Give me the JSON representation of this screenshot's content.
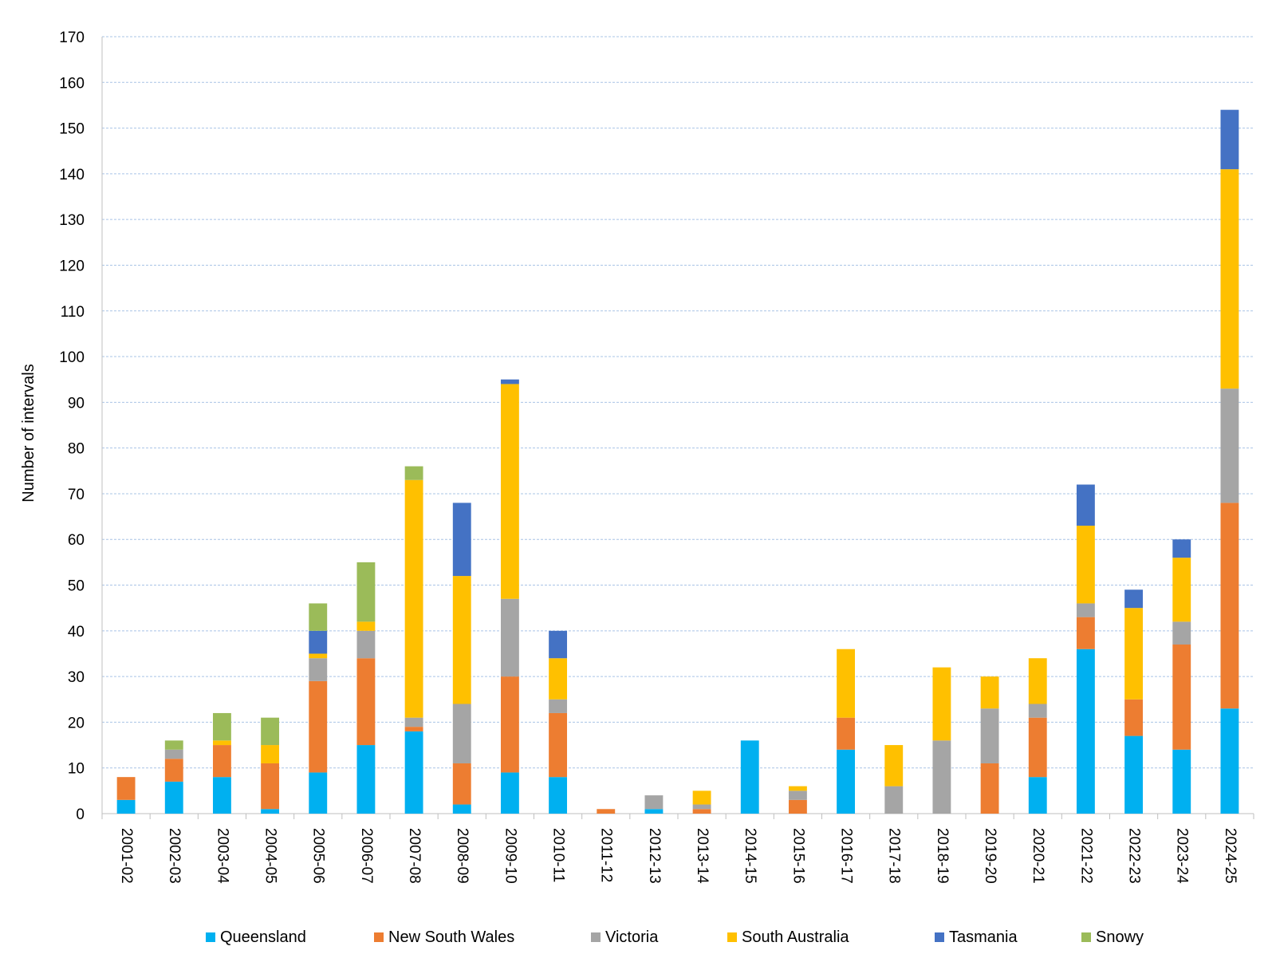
{
  "chart_data": {
    "type": "bar",
    "stacked": true,
    "title": "",
    "xlabel": "",
    "ylabel": "Number of intervals",
    "ylim": [
      0,
      170
    ],
    "yticks": [
      0,
      10,
      20,
      30,
      40,
      50,
      60,
      70,
      80,
      90,
      100,
      110,
      120,
      130,
      140,
      150,
      160,
      170
    ],
    "grid": "horizontal dashed",
    "legend_position": "bottom",
    "categories": [
      "2001-02",
      "2002-03",
      "2003-04",
      "2004-05",
      "2005-06",
      "2006-07",
      "2007-08",
      "2008-09",
      "2009-10",
      "2010-11",
      "2011-12",
      "2012-13",
      "2013-14",
      "2014-15",
      "2015-16",
      "2016-17",
      "2017-18",
      "2018-19",
      "2019-20",
      "2020-21",
      "2021-22",
      "2022-23",
      "2023-24",
      "2024-25"
    ],
    "series": [
      {
        "name": "Queensland",
        "color": "#00B0F0",
        "values": [
          3,
          7,
          8,
          1,
          9,
          15,
          18,
          2,
          9,
          8,
          0,
          1,
          0,
          16,
          0,
          14,
          0,
          0,
          0,
          8,
          36,
          17,
          14,
          23
        ]
      },
      {
        "name": "New South Wales",
        "color": "#ED7D31",
        "values": [
          5,
          5,
          7,
          10,
          20,
          19,
          1,
          9,
          21,
          14,
          1,
          0,
          1,
          0,
          3,
          7,
          0,
          0,
          11,
          13,
          7,
          8,
          23,
          45
        ]
      },
      {
        "name": "Victoria",
        "color": "#A5A5A5",
        "values": [
          0,
          2,
          0,
          0,
          5,
          6,
          2,
          13,
          17,
          3,
          0,
          3,
          1,
          0,
          2,
          0,
          6,
          16,
          12,
          3,
          3,
          0,
          5,
          25
        ]
      },
      {
        "name": "South Australia",
        "color": "#FFC000",
        "values": [
          0,
          0,
          1,
          4,
          1,
          2,
          52,
          28,
          47,
          9,
          0,
          0,
          3,
          0,
          1,
          15,
          9,
          16,
          7,
          10,
          17,
          20,
          14,
          48
        ]
      },
      {
        "name": "Tasmania",
        "color": "#4472C4",
        "values": [
          0,
          0,
          0,
          0,
          5,
          0,
          0,
          16,
          1,
          6,
          0,
          0,
          0,
          0,
          0,
          0,
          0,
          0,
          0,
          0,
          9,
          4,
          4,
          13
        ]
      },
      {
        "name": "Snowy",
        "color": "#9BBB59",
        "values": [
          0,
          2,
          6,
          6,
          6,
          13,
          3,
          0,
          0,
          0,
          0,
          0,
          0,
          0,
          0,
          0,
          0,
          0,
          0,
          0,
          0,
          0,
          0,
          0
        ]
      }
    ]
  }
}
